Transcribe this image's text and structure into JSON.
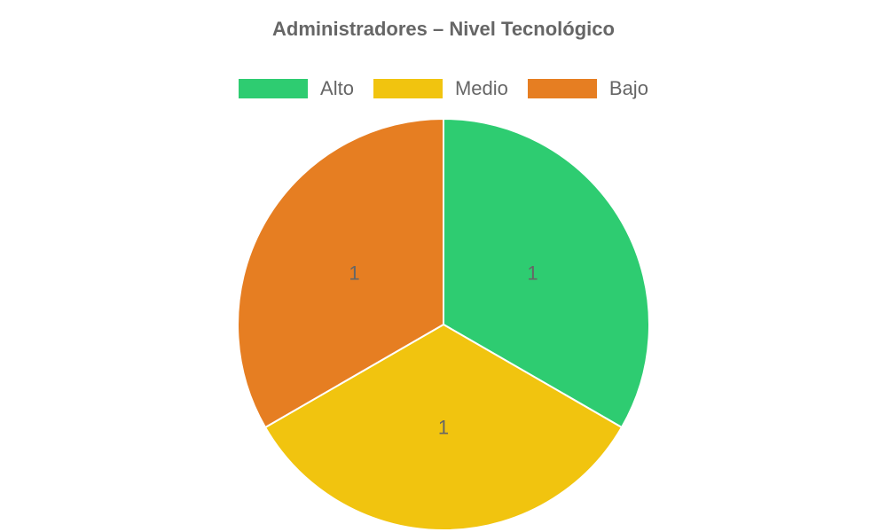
{
  "chart_data": {
    "type": "pie",
    "title": "Administradores – Nivel Tecnológico",
    "legend_position": "top",
    "categories": [
      "Alto",
      "Medio",
      "Bajo"
    ],
    "values": [
      1,
      1,
      1
    ],
    "colors": [
      "#2ecc71",
      "#f1c40f",
      "#e67e22"
    ]
  }
}
